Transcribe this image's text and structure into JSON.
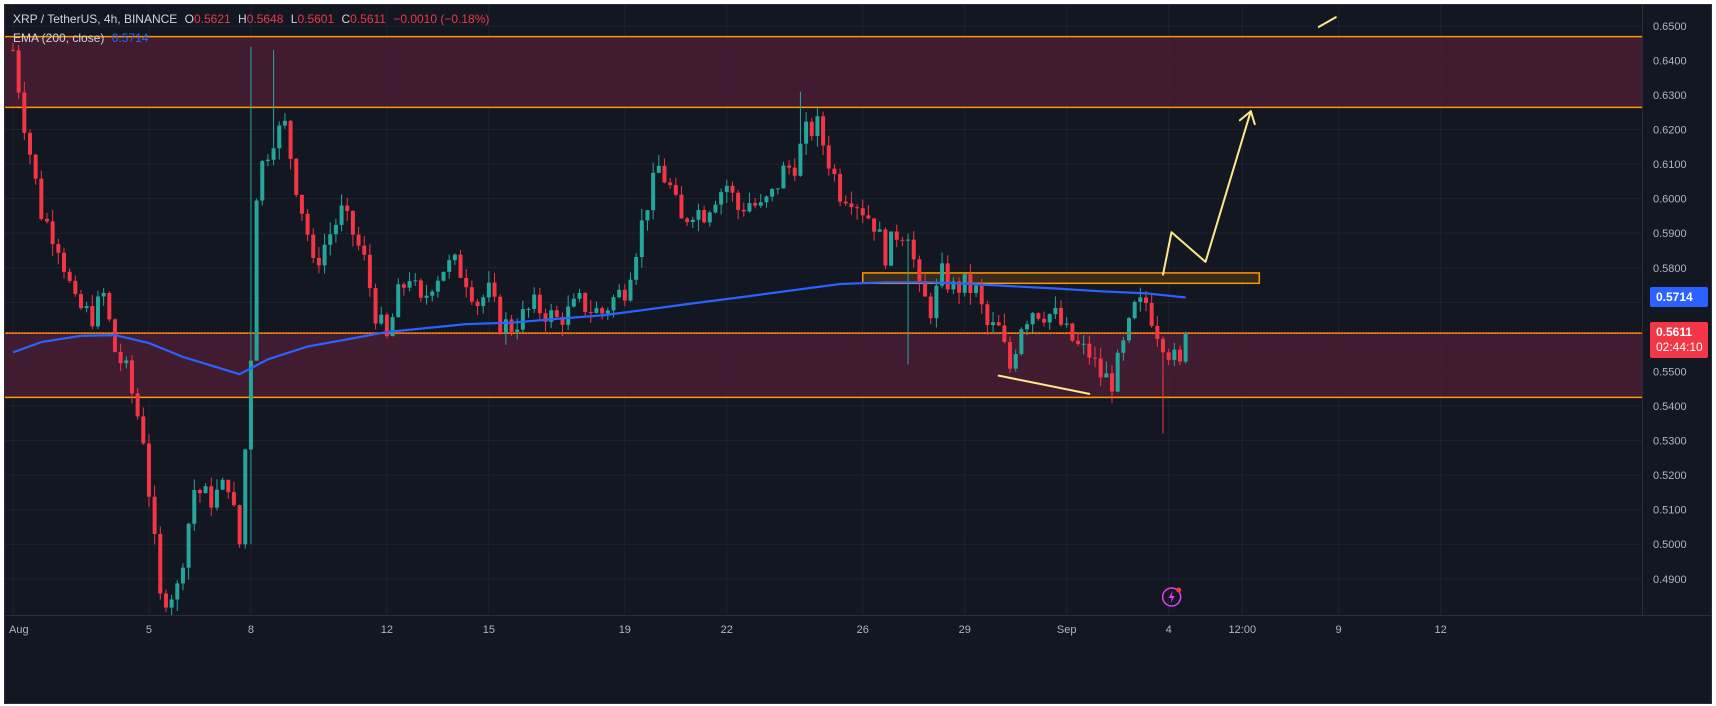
{
  "legend": {
    "symbol": "XRP / TetherUS, 4h, BINANCE",
    "o_label": "O",
    "o_val": "0.5621",
    "h_label": "H",
    "h_val": "0.5648",
    "l_label": "L",
    "l_val": "0.5601",
    "c_label": "C",
    "c_val": "0.5611",
    "change": "−0.0010 (−0.18%)",
    "ema_label": "EMA (200, close)",
    "ema_val": "0.5714"
  },
  "badges": {
    "ema_price": "0.5714",
    "last_price": "0.5611",
    "countdown": "02:44:10"
  },
  "colors": {
    "background": "#131722",
    "up": "#26a69a",
    "down": "#f23645",
    "ema": "#2962ff",
    "zone_fill": "#4a1d34",
    "zone_line": "#ff9800",
    "annotation": "#ffe98a"
  },
  "chart_data": {
    "type": "candlestick",
    "title": "XRP / TetherUS, 4h, BINANCE",
    "interval": "4h",
    "ylim": [
      0.484,
      0.653
    ],
    "y_ticks": [
      "0.6500",
      "0.6400",
      "0.6300",
      "0.6200",
      "0.6100",
      "0.6000",
      "0.5900",
      "0.5800",
      "0.5700",
      "0.5600",
      "0.5500",
      "0.5400",
      "0.5300",
      "0.5200",
      "0.5100",
      "0.5000",
      "0.4900"
    ],
    "x_ticks": [
      {
        "label": "Aug",
        "bar": 0
      },
      {
        "label": "5",
        "bar": 24
      },
      {
        "label": "8",
        "bar": 42
      },
      {
        "label": "12",
        "bar": 66
      },
      {
        "label": "15",
        "bar": 84
      },
      {
        "label": "19",
        "bar": 108
      },
      {
        "label": "22",
        "bar": 126
      },
      {
        "label": "26",
        "bar": 150
      },
      {
        "label": "29",
        "bar": 168
      },
      {
        "label": "Sep",
        "bar": 186
      },
      {
        "label": "4",
        "bar": 204
      },
      {
        "label": "12:00",
        "bar": 217
      },
      {
        "label": "9",
        "bar": 234
      },
      {
        "label": "12",
        "bar": 252
      }
    ],
    "grid": true,
    "price_anchors": [
      {
        "bar": 0,
        "price": 0.643
      },
      {
        "bar": 2,
        "price": 0.622
      },
      {
        "bar": 5,
        "price": 0.596
      },
      {
        "bar": 8,
        "price": 0.587
      },
      {
        "bar": 11,
        "price": 0.569
      },
      {
        "bar": 14,
        "price": 0.566
      },
      {
        "bar": 16,
        "price": 0.572
      },
      {
        "bar": 18,
        "price": 0.556
      },
      {
        "bar": 20,
        "price": 0.55
      },
      {
        "bar": 23,
        "price": 0.531
      },
      {
        "bar": 26,
        "price": 0.484
      },
      {
        "bar": 29,
        "price": 0.487
      },
      {
        "bar": 32,
        "price": 0.516
      },
      {
        "bar": 35,
        "price": 0.513
      },
      {
        "bar": 38,
        "price": 0.518
      },
      {
        "bar": 40,
        "price": 0.5
      },
      {
        "bar": 42,
        "price": 0.555
      },
      {
        "bar": 43,
        "price": 0.602
      },
      {
        "bar": 44,
        "price": 0.61
      },
      {
        "bar": 46,
        "price": 0.618
      },
      {
        "bar": 48,
        "price": 0.621
      },
      {
        "bar": 50,
        "price": 0.604
      },
      {
        "bar": 52,
        "price": 0.59
      },
      {
        "bar": 53,
        "price": 0.58
      },
      {
        "bar": 56,
        "price": 0.59
      },
      {
        "bar": 58,
        "price": 0.596
      },
      {
        "bar": 60,
        "price": 0.59
      },
      {
        "bar": 62,
        "price": 0.582
      },
      {
        "bar": 64,
        "price": 0.567
      },
      {
        "bar": 66,
        "price": 0.559
      },
      {
        "bar": 68,
        "price": 0.572
      },
      {
        "bar": 70,
        "price": 0.578
      },
      {
        "bar": 72,
        "price": 0.569
      },
      {
        "bar": 74,
        "price": 0.576
      },
      {
        "bar": 76,
        "price": 0.58
      },
      {
        "bar": 78,
        "price": 0.581
      },
      {
        "bar": 80,
        "price": 0.577
      },
      {
        "bar": 82,
        "price": 0.57
      },
      {
        "bar": 84,
        "price": 0.573
      },
      {
        "bar": 86,
        "price": 0.564
      },
      {
        "bar": 88,
        "price": 0.563
      },
      {
        "bar": 90,
        "price": 0.566
      },
      {
        "bar": 92,
        "price": 0.569
      },
      {
        "bar": 94,
        "price": 0.567
      },
      {
        "bar": 96,
        "price": 0.565
      },
      {
        "bar": 98,
        "price": 0.567
      },
      {
        "bar": 100,
        "price": 0.57
      },
      {
        "bar": 102,
        "price": 0.568
      },
      {
        "bar": 104,
        "price": 0.567
      },
      {
        "bar": 106,
        "price": 0.571
      },
      {
        "bar": 108,
        "price": 0.574
      },
      {
        "bar": 110,
        "price": 0.586
      },
      {
        "bar": 112,
        "price": 0.599
      },
      {
        "bar": 114,
        "price": 0.609
      },
      {
        "bar": 116,
        "price": 0.603
      },
      {
        "bar": 118,
        "price": 0.593
      },
      {
        "bar": 120,
        "price": 0.597
      },
      {
        "bar": 122,
        "price": 0.596
      },
      {
        "bar": 124,
        "price": 0.601
      },
      {
        "bar": 126,
        "price": 0.604
      },
      {
        "bar": 128,
        "price": 0.597
      },
      {
        "bar": 130,
        "price": 0.599
      },
      {
        "bar": 132,
        "price": 0.597
      },
      {
        "bar": 134,
        "price": 0.601
      },
      {
        "bar": 136,
        "price": 0.608
      },
      {
        "bar": 138,
        "price": 0.61
      },
      {
        "bar": 140,
        "price": 0.619
      },
      {
        "bar": 142,
        "price": 0.621
      },
      {
        "bar": 144,
        "price": 0.611
      },
      {
        "bar": 146,
        "price": 0.602
      },
      {
        "bar": 148,
        "price": 0.601
      },
      {
        "bar": 150,
        "price": 0.597
      },
      {
        "bar": 152,
        "price": 0.593
      },
      {
        "bar": 154,
        "price": 0.584
      },
      {
        "bar": 156,
        "price": 0.59
      },
      {
        "bar": 158,
        "price": 0.591
      },
      {
        "bar": 160,
        "price": 0.573
      },
      {
        "bar": 162,
        "price": 0.568
      },
      {
        "bar": 164,
        "price": 0.578
      },
      {
        "bar": 166,
        "price": 0.574
      },
      {
        "bar": 168,
        "price": 0.575
      },
      {
        "bar": 170,
        "price": 0.573
      },
      {
        "bar": 172,
        "price": 0.563
      },
      {
        "bar": 174,
        "price": 0.562
      },
      {
        "bar": 176,
        "price": 0.551
      },
      {
        "bar": 178,
        "price": 0.564
      },
      {
        "bar": 180,
        "price": 0.568
      },
      {
        "bar": 182,
        "price": 0.567
      },
      {
        "bar": 184,
        "price": 0.566
      },
      {
        "bar": 186,
        "price": 0.561
      },
      {
        "bar": 188,
        "price": 0.557
      },
      {
        "bar": 190,
        "price": 0.555
      },
      {
        "bar": 192,
        "price": 0.549
      },
      {
        "bar": 194,
        "price": 0.547
      },
      {
        "bar": 196,
        "price": 0.557
      },
      {
        "bar": 198,
        "price": 0.568
      },
      {
        "bar": 200,
        "price": 0.57
      },
      {
        "bar": 202,
        "price": 0.562
      },
      {
        "bar": 204,
        "price": 0.556
      },
      {
        "bar": 206,
        "price": 0.551
      },
      {
        "bar": 207,
        "price": 0.5611
      }
    ],
    "ema_200": [
      {
        "bar": 0,
        "value": 0.5555
      },
      {
        "bar": 5,
        "value": 0.5585
      },
      {
        "bar": 12,
        "value": 0.5603
      },
      {
        "bar": 18,
        "value": 0.5605
      },
      {
        "bar": 24,
        "value": 0.5582
      },
      {
        "bar": 30,
        "value": 0.5542
      },
      {
        "bar": 40,
        "value": 0.5492
      },
      {
        "bar": 45,
        "value": 0.5535
      },
      {
        "bar": 52,
        "value": 0.5572
      },
      {
        "bar": 60,
        "value": 0.5596
      },
      {
        "bar": 66,
        "value": 0.5614
      },
      {
        "bar": 72,
        "value": 0.5624
      },
      {
        "bar": 80,
        "value": 0.5637
      },
      {
        "bar": 88,
        "value": 0.5641
      },
      {
        "bar": 96,
        "value": 0.5652
      },
      {
        "bar": 104,
        "value": 0.5662
      },
      {
        "bar": 110,
        "value": 0.5675
      },
      {
        "bar": 120,
        "value": 0.5697
      },
      {
        "bar": 130,
        "value": 0.5718
      },
      {
        "bar": 140,
        "value": 0.574
      },
      {
        "bar": 146,
        "value": 0.5753
      },
      {
        "bar": 154,
        "value": 0.5758
      },
      {
        "bar": 162,
        "value": 0.5758
      },
      {
        "bar": 168,
        "value": 0.5754
      },
      {
        "bar": 176,
        "value": 0.5747
      },
      {
        "bar": 184,
        "value": 0.574
      },
      {
        "bar": 192,
        "value": 0.5732
      },
      {
        "bar": 200,
        "value": 0.5726
      },
      {
        "bar": 207,
        "value": 0.5714
      }
    ],
    "zones": [
      {
        "name": "upper resistance zone",
        "top": 0.6469,
        "bottom": 0.6264
      },
      {
        "name": "lower support zone",
        "top": 0.5611,
        "bottom": 0.5425
      },
      {
        "name": "breakout box",
        "top": 0.5785,
        "bottom": 0.5755,
        "bar_start": 150,
        "bar_end": 220
      }
    ],
    "annotations": [
      {
        "name": "descending trendline",
        "points": [
          {
            "bar": 174,
            "price": 0.5488
          },
          {
            "bar": 190,
            "price": 0.5435
          }
        ]
      },
      {
        "name": "projected path",
        "points": [
          {
            "bar": 203,
            "price": 0.578
          },
          {
            "bar": 204.5,
            "price": 0.5903
          },
          {
            "bar": 210.5,
            "price": 0.5817
          },
          {
            "bar": 218.5,
            "price": 0.6253
          }
        ]
      },
      {
        "name": "top-right line",
        "points": [
          {
            "bar": 230.5,
            "price": 0.6497
          },
          {
            "bar": 233.5,
            "price": 0.6525
          }
        ]
      }
    ],
    "last_price": 0.5611,
    "ema_last": 0.5714
  }
}
